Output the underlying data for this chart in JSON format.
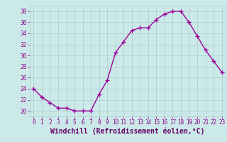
{
  "x": [
    0,
    1,
    2,
    3,
    4,
    5,
    6,
    7,
    8,
    9,
    10,
    11,
    12,
    13,
    14,
    15,
    16,
    17,
    18,
    19,
    20,
    21,
    22,
    23
  ],
  "y": [
    24,
    22.5,
    21.5,
    20.5,
    20.5,
    20.0,
    20.0,
    20.0,
    23.0,
    25.5,
    30.5,
    32.5,
    34.5,
    35.0,
    35.0,
    36.5,
    37.5,
    38.0,
    38.0,
    36.0,
    33.5,
    31.0,
    29.0,
    27.0
  ],
  "line_color": "#990099",
  "marker": "+",
  "markersize": 4,
  "linewidth": 1.0,
  "xlabel": "Windchill (Refroidissement éolien,°C)",
  "xlabel_color": "#660066",
  "ylim": [
    19,
    39
  ],
  "xlim": [
    -0.5,
    23.5
  ],
  "yticks": [
    20,
    22,
    24,
    26,
    28,
    30,
    32,
    34,
    36,
    38
  ],
  "xticks": [
    0,
    1,
    2,
    3,
    4,
    5,
    6,
    7,
    8,
    9,
    10,
    11,
    12,
    13,
    14,
    15,
    16,
    17,
    18,
    19,
    20,
    21,
    22,
    23
  ],
  "xtick_labels": [
    "0",
    "1",
    "2",
    "3",
    "4",
    "5",
    "6",
    "7",
    "8",
    "9",
    "10",
    "11",
    "12",
    "13",
    "14",
    "15",
    "16",
    "17",
    "18",
    "19",
    "20",
    "21",
    "22",
    "23"
  ],
  "background_color": "#cce9e9",
  "grid_color": "#aacccc",
  "tick_color": "#880088",
  "tick_fontsize": 5.5,
  "xlabel_fontsize": 7.0,
  "markeredgewidth": 1.0
}
